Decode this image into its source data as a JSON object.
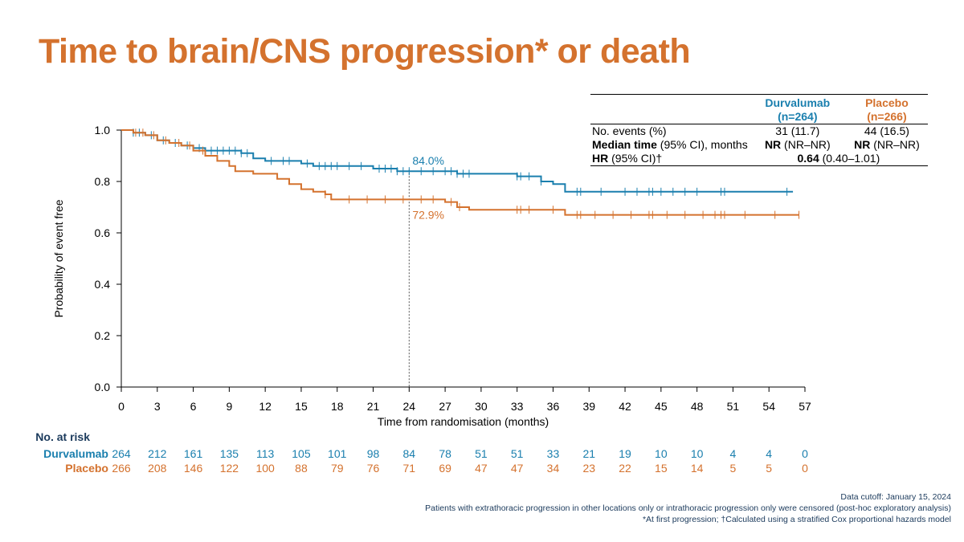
{
  "page": {
    "title": "Time to brain/CNS progression* or death"
  },
  "stats_table": {
    "col_headers": [
      {
        "name_line": "Durvalumab",
        "n_line": "(n=264)",
        "color": "#1a7fae"
      },
      {
        "name_line": "Placebo",
        "n_line": "(n=266)",
        "color": "#d4722e"
      }
    ],
    "rows": [
      {
        "label_bold": "",
        "label_rest": "No. events (%)",
        "durv_bold": "",
        "durv_rest": "31 (11.7)",
        "plac_bold": "",
        "plac_rest": "44 (16.5)"
      },
      {
        "label_bold": "Median time",
        "label_rest": " (95% CI), months",
        "durv_bold": "NR",
        "durv_rest": " (NR–NR)",
        "plac_bold": "NR",
        "plac_rest": " (NR–NR)"
      }
    ],
    "hr_row": {
      "label_bold": "HR",
      "label_rest": " (95% CI)†",
      "value_bold": "0.64",
      "value_rest": " (0.40–1.01)"
    }
  },
  "chart_data": {
    "type": "line",
    "xlabel": "Time from randomisation (months)",
    "ylabel": "Probability of event free",
    "xlim": [
      0,
      57
    ],
    "ylim": [
      0,
      1
    ],
    "xticks": [
      0,
      3,
      6,
      9,
      12,
      15,
      18,
      21,
      24,
      27,
      30,
      33,
      36,
      39,
      42,
      45,
      48,
      51,
      54,
      57
    ],
    "yticks": [
      "0.0",
      "0.2",
      "0.4",
      "0.6",
      "0.8",
      "1.0"
    ],
    "grid": false,
    "series": [
      {
        "name": "Durvalumab",
        "color": "#1a7fae",
        "steps": [
          [
            0,
            1.0
          ],
          [
            1,
            0.99
          ],
          [
            2,
            0.98
          ],
          [
            3,
            0.96
          ],
          [
            4,
            0.95
          ],
          [
            5,
            0.94
          ],
          [
            6,
            0.93
          ],
          [
            7,
            0.92
          ],
          [
            10,
            0.91
          ],
          [
            11,
            0.89
          ],
          [
            12,
            0.88
          ],
          [
            15,
            0.87
          ],
          [
            16,
            0.86
          ],
          [
            21,
            0.85
          ],
          [
            23,
            0.84
          ],
          [
            28,
            0.83
          ],
          [
            33,
            0.82
          ],
          [
            35,
            0.8
          ],
          [
            36,
            0.79
          ],
          [
            37,
            0.76
          ],
          [
            56,
            0.76
          ]
        ],
        "censor": [
          1,
          1.5,
          2.5,
          3.5,
          4.5,
          5.5,
          6.5,
          7.5,
          8,
          8.5,
          9,
          9.5,
          10,
          10.5,
          12.5,
          13.5,
          14,
          15.5,
          16.5,
          17,
          17.5,
          18,
          19,
          20,
          21.5,
          22,
          22.5,
          23,
          23.5,
          24,
          25,
          26,
          27,
          27.5,
          28,
          28.5,
          29,
          33,
          33.3,
          34,
          35,
          38,
          38.3,
          40,
          42,
          43,
          44,
          44.3,
          45,
          46,
          47,
          48,
          50,
          50.3,
          55.5
        ]
      },
      {
        "name": "Placebo",
        "color": "#d4722e",
        "steps": [
          [
            0,
            1.0
          ],
          [
            1,
            0.99
          ],
          [
            2,
            0.98
          ],
          [
            3,
            0.96
          ],
          [
            4,
            0.95
          ],
          [
            5,
            0.94
          ],
          [
            6,
            0.92
          ],
          [
            7,
            0.9
          ],
          [
            8,
            0.88
          ],
          [
            9,
            0.86
          ],
          [
            9.5,
            0.84
          ],
          [
            11,
            0.83
          ],
          [
            13,
            0.81
          ],
          [
            14,
            0.79
          ],
          [
            15,
            0.77
          ],
          [
            16,
            0.76
          ],
          [
            17,
            0.75
          ],
          [
            17.5,
            0.73
          ],
          [
            27,
            0.72
          ],
          [
            28,
            0.7
          ],
          [
            29,
            0.69
          ],
          [
            37,
            0.67
          ],
          [
            56.5,
            0.67
          ]
        ],
        "censor": [
          1.2,
          1.8,
          2.7,
          3.7,
          4.8,
          5.7,
          6.8,
          17,
          19,
          20.5,
          22,
          23.5,
          25,
          26,
          27.5,
          28.2,
          33,
          33.3,
          34,
          36,
          38,
          38.3,
          39.5,
          41,
          42.5,
          44,
          44.3,
          45.5,
          47,
          48.5,
          49.5,
          50,
          50.3,
          52,
          54.5,
          56.5
        ]
      }
    ],
    "annotations": [
      {
        "x": 24,
        "y": 0.84,
        "text": "84.0%",
        "series": "Durvalumab"
      },
      {
        "x": 24,
        "y": 0.729,
        "text": "72.9%",
        "series": "Placebo"
      }
    ],
    "reference_line_x": 24,
    "risk_table": {
      "title": "No. at risk",
      "rows": [
        {
          "name": "Durvalumab",
          "color": "#1a7fae",
          "values": [
            264,
            212,
            161,
            135,
            113,
            105,
            101,
            98,
            84,
            78,
            51,
            51,
            33,
            21,
            19,
            10,
            10,
            4,
            4,
            0
          ]
        },
        {
          "name": "Placebo",
          "color": "#d4722e",
          "values": [
            266,
            208,
            146,
            122,
            100,
            88,
            79,
            76,
            71,
            69,
            47,
            47,
            34,
            23,
            22,
            15,
            14,
            5,
            5,
            0
          ]
        }
      ]
    }
  },
  "footnotes": [
    "Data cutoff: January 15, 2024",
    "Patients with extrathoracic progression in other locations only or intrathoracic progression only were censored (post-hoc exploratory analysis)",
    "*At first progression; †Calculated using a stratified Cox proportional hazards model"
  ]
}
